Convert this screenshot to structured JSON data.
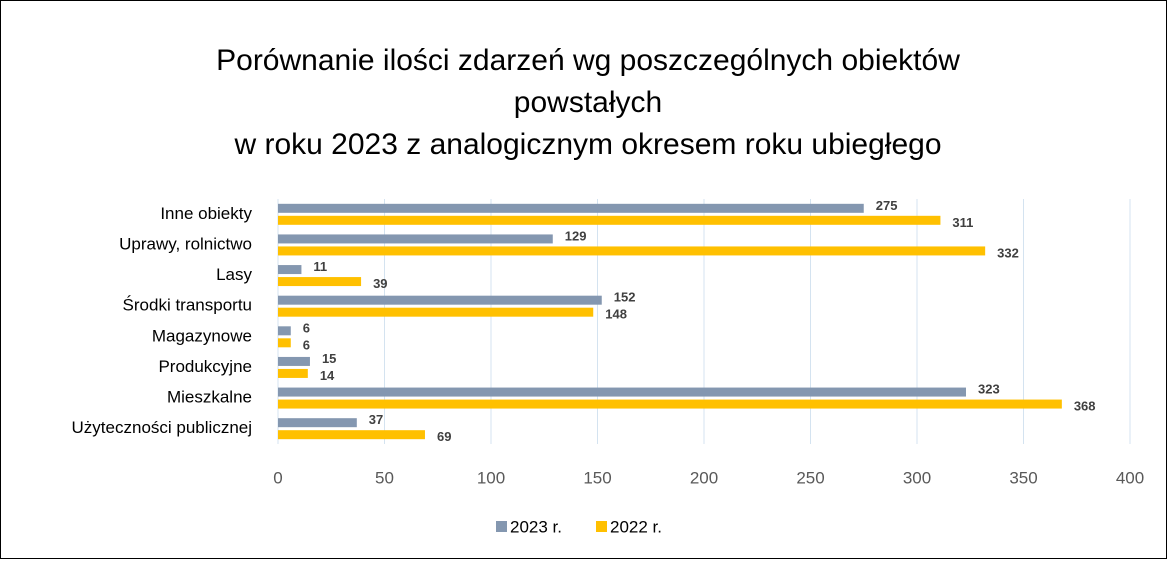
{
  "chart_data": {
    "type": "hbar",
    "title": [
      "Porównanie ilości zdarzeń wg poszczególnych obiektów",
      "powstałych",
      "w roku 2023 z analogicznym okresem roku ubiegłego"
    ],
    "categories": [
      "Inne obiekty",
      "Uprawy, rolnictwo",
      "Lasy",
      "Środki transportu",
      "Magazynowe",
      "Produkcyjne",
      "Mieszkalne",
      "Użyteczności publicznej"
    ],
    "series": [
      {
        "name": "2023 r.",
        "color": "#8497b0",
        "values": [
          275,
          129,
          11,
          152,
          6,
          15,
          323,
          37
        ]
      },
      {
        "name": "2022 r.",
        "color": "#ffc000",
        "values": [
          311,
          332,
          39,
          148,
          6,
          14,
          368,
          69
        ]
      }
    ],
    "xlim": [
      0,
      400
    ],
    "xticks": [
      0,
      50,
      100,
      150,
      200,
      250,
      300,
      350,
      400
    ],
    "grid": true,
    "legend": "bottom"
  }
}
